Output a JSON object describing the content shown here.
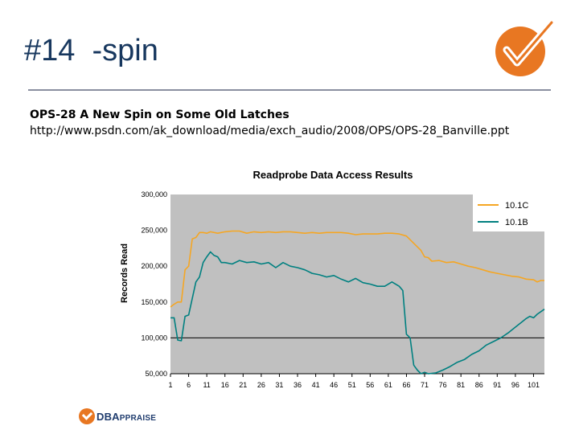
{
  "slide": {
    "title": "#14  -spin",
    "line1": "OPS-28  A New Spin on Some Old Latches",
    "line2": "http://www.psdn.com/ak_download/media/exch_audio/2008/OPS/OPS-28_Banville.ppt",
    "footer_logo_text": "DBA",
    "footer_logo_text_small": "PPRAISE",
    "logo_icon": "orange-circle-checkmark-icon",
    "footer_icon": "orange-circle-checkmark-icon"
  },
  "chart_data": {
    "type": "line",
    "title": "Readprobe Data Access Results",
    "ylabel": "Records Read",
    "xlabel": "",
    "ylim": [
      50000,
      300000
    ],
    "xlim": [
      1,
      104
    ],
    "yticks": [
      "50,000",
      "100,000",
      "150,000",
      "200,000",
      "250,000",
      "300,000"
    ],
    "ytick_values": [
      50000,
      100000,
      150000,
      200000,
      250000,
      300000
    ],
    "xticks": [
      "1",
      "6",
      "11",
      "16",
      "21",
      "26",
      "31",
      "36",
      "41",
      "46",
      "51",
      "56",
      "61",
      "66",
      "71",
      "76",
      "81",
      "86",
      "91",
      "96",
      "101"
    ],
    "xtick_values": [
      1,
      6,
      11,
      16,
      21,
      26,
      31,
      36,
      41,
      46,
      51,
      56,
      61,
      66,
      71,
      76,
      81,
      86,
      91,
      96,
      101
    ],
    "reference_line": 100000,
    "plot_background": "#c0c0c0",
    "legend_position": "top-right",
    "series": [
      {
        "name": "10.1C",
        "color": "#f5a623",
        "points": [
          [
            1,
            143000
          ],
          [
            2,
            147000
          ],
          [
            3,
            150000
          ],
          [
            4,
            150000
          ],
          [
            5,
            195000
          ],
          [
            6,
            200000
          ],
          [
            7,
            238000
          ],
          [
            8,
            240000
          ],
          [
            9,
            247000
          ],
          [
            10,
            247000
          ],
          [
            11,
            246000
          ],
          [
            12,
            248000
          ],
          [
            14,
            246000
          ],
          [
            16,
            248000
          ],
          [
            18,
            249000
          ],
          [
            20,
            249000
          ],
          [
            22,
            246000
          ],
          [
            24,
            248000
          ],
          [
            26,
            247000
          ],
          [
            28,
            248000
          ],
          [
            30,
            247000
          ],
          [
            32,
            248000
          ],
          [
            34,
            248000
          ],
          [
            36,
            247000
          ],
          [
            38,
            246000
          ],
          [
            40,
            247000
          ],
          [
            42,
            246000
          ],
          [
            44,
            247000
          ],
          [
            46,
            247000
          ],
          [
            48,
            247000
          ],
          [
            50,
            246000
          ],
          [
            52,
            244000
          ],
          [
            54,
            245000
          ],
          [
            56,
            245000
          ],
          [
            58,
            245000
          ],
          [
            60,
            246000
          ],
          [
            62,
            246000
          ],
          [
            64,
            245000
          ],
          [
            66,
            242000
          ],
          [
            68,
            232000
          ],
          [
            70,
            222000
          ],
          [
            71,
            213000
          ],
          [
            72,
            212000
          ],
          [
            73,
            207000
          ],
          [
            75,
            208000
          ],
          [
            77,
            205000
          ],
          [
            79,
            206000
          ],
          [
            81,
            203000
          ],
          [
            83,
            200000
          ],
          [
            85,
            198000
          ],
          [
            87,
            195000
          ],
          [
            89,
            192000
          ],
          [
            91,
            190000
          ],
          [
            93,
            188000
          ],
          [
            95,
            186000
          ],
          [
            97,
            185000
          ],
          [
            99,
            182000
          ],
          [
            101,
            181000
          ],
          [
            102,
            178000
          ],
          [
            103,
            180000
          ],
          [
            104,
            180000
          ]
        ]
      },
      {
        "name": "10.1B",
        "color": "#008080",
        "points": [
          [
            1,
            128000
          ],
          [
            2,
            128000
          ],
          [
            3,
            97000
          ],
          [
            4,
            96000
          ],
          [
            5,
            130000
          ],
          [
            6,
            132000
          ],
          [
            7,
            155000
          ],
          [
            8,
            178000
          ],
          [
            9,
            185000
          ],
          [
            10,
            205000
          ],
          [
            11,
            213000
          ],
          [
            12,
            220000
          ],
          [
            13,
            215000
          ],
          [
            14,
            213000
          ],
          [
            15,
            205000
          ],
          [
            16,
            205000
          ],
          [
            18,
            203000
          ],
          [
            20,
            208000
          ],
          [
            22,
            205000
          ],
          [
            24,
            206000
          ],
          [
            26,
            203000
          ],
          [
            28,
            205000
          ],
          [
            30,
            198000
          ],
          [
            32,
            205000
          ],
          [
            34,
            200000
          ],
          [
            36,
            198000
          ],
          [
            38,
            195000
          ],
          [
            40,
            190000
          ],
          [
            42,
            188000
          ],
          [
            44,
            185000
          ],
          [
            46,
            187000
          ],
          [
            48,
            182000
          ],
          [
            50,
            178000
          ],
          [
            52,
            183000
          ],
          [
            54,
            177000
          ],
          [
            56,
            175000
          ],
          [
            58,
            172000
          ],
          [
            60,
            172000
          ],
          [
            62,
            178000
          ],
          [
            64,
            172000
          ],
          [
            65,
            166000
          ],
          [
            66,
            105000
          ],
          [
            67,
            100000
          ],
          [
            68,
            62000
          ],
          [
            69,
            55000
          ],
          [
            70,
            50000
          ],
          [
            71,
            52000
          ],
          [
            72,
            50000
          ],
          [
            74,
            51000
          ],
          [
            76,
            55000
          ],
          [
            78,
            60000
          ],
          [
            80,
            66000
          ],
          [
            82,
            70000
          ],
          [
            84,
            77000
          ],
          [
            86,
            82000
          ],
          [
            88,
            90000
          ],
          [
            90,
            95000
          ],
          [
            92,
            100000
          ],
          [
            94,
            107000
          ],
          [
            96,
            115000
          ],
          [
            98,
            123000
          ],
          [
            99,
            127000
          ],
          [
            100,
            130000
          ],
          [
            101,
            128000
          ],
          [
            102,
            133000
          ],
          [
            104,
            140000
          ]
        ]
      }
    ]
  }
}
